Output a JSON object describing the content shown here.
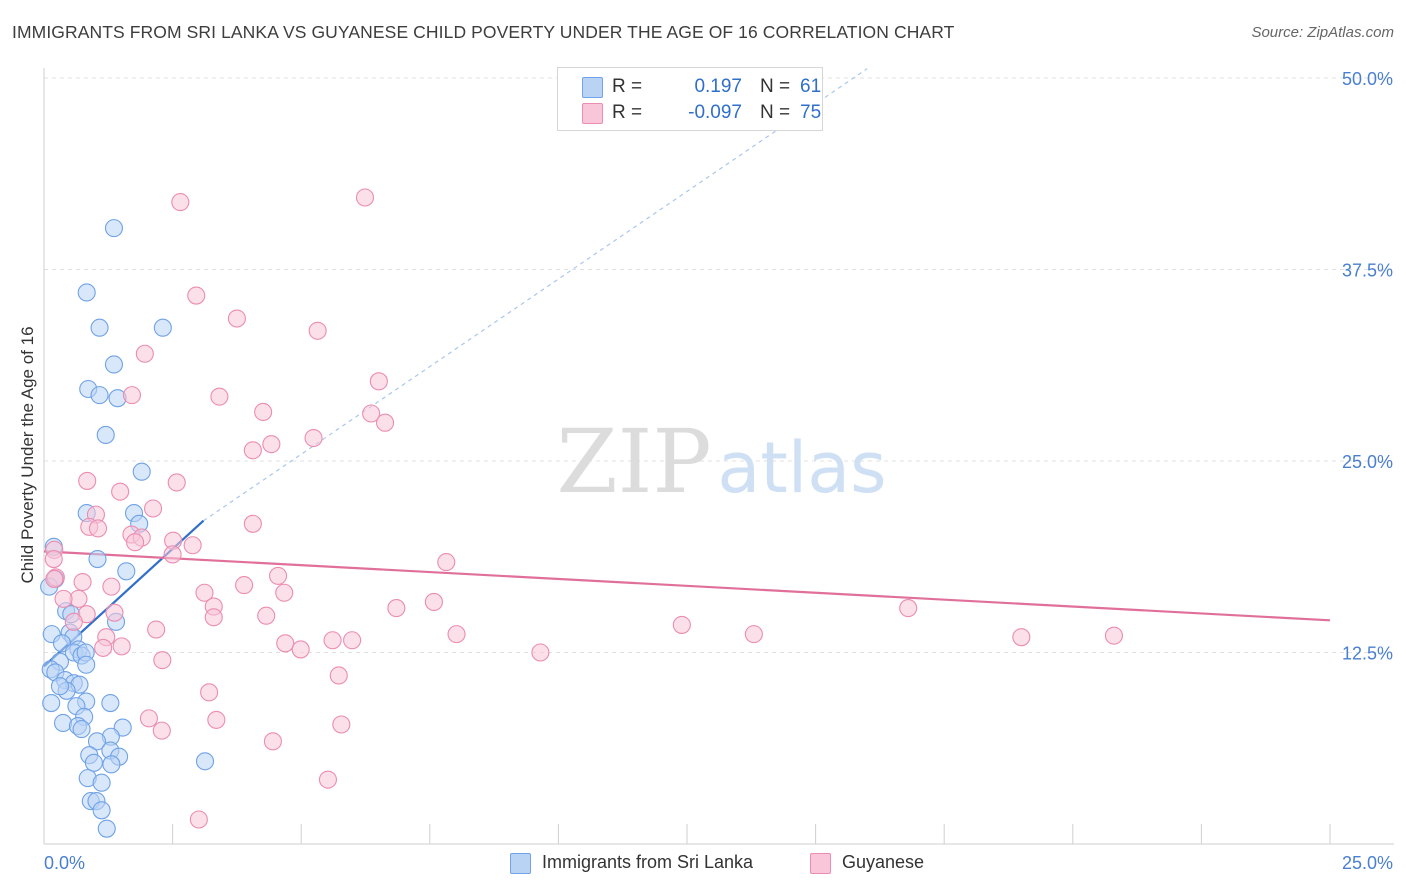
{
  "chart_data": {
    "type": "scatter",
    "title": "IMMIGRANTS FROM SRI LANKA VS GUYANESE CHILD POVERTY UNDER THE AGE OF 16 CORRELATION CHART",
    "source": "Source: ZipAtlas.com",
    "xlabel": "",
    "ylabel": "Child Poverty Under the Age of 16",
    "xlim": [
      0,
      25
    ],
    "ylim": [
      0,
      50
    ],
    "x_tick_labels": [
      "0.0%",
      "25.0%"
    ],
    "y_tick_labels": [
      "12.5%",
      "25.0%",
      "37.5%",
      "50.0%"
    ],
    "y_ticks": [
      12.5,
      25.0,
      37.5,
      50.0
    ],
    "grid": true,
    "watermark": "ZIPatlas",
    "legend": {
      "r_label": "R =",
      "n_label": "N =",
      "entries": [
        {
          "r": "0.197",
          "n": "61"
        },
        {
          "r": "-0.097",
          "n": "75"
        }
      ]
    },
    "series": [
      {
        "name": "Immigrants from Sri Lanka",
        "color": "#6fa2e6",
        "fill": "#b9d3f5",
        "trend": {
          "x0": 0.0,
          "y0": 11.6,
          "x1": 3.1,
          "y1": 21.1,
          "dashed_to_x": 16.0,
          "dashed_to_y": 50.6
        },
        "points": [
          [
            1.36,
            40.2
          ],
          [
            0.83,
            36.0
          ],
          [
            1.08,
            33.7
          ],
          [
            2.31,
            33.7
          ],
          [
            1.36,
            31.3
          ],
          [
            0.86,
            29.7
          ],
          [
            1.08,
            29.3
          ],
          [
            1.43,
            29.1
          ],
          [
            1.2,
            26.7
          ],
          [
            1.9,
            24.3
          ],
          [
            0.83,
            21.6
          ],
          [
            1.75,
            21.6
          ],
          [
            1.85,
            20.9
          ],
          [
            0.19,
            19.4
          ],
          [
            1.04,
            18.6
          ],
          [
            1.6,
            17.8
          ],
          [
            0.22,
            17.3
          ],
          [
            0.1,
            16.8
          ],
          [
            0.43,
            15.2
          ],
          [
            0.53,
            15.0
          ],
          [
            1.4,
            14.5
          ],
          [
            0.5,
            13.8
          ],
          [
            0.15,
            13.7
          ],
          [
            0.57,
            13.5
          ],
          [
            0.35,
            13.1
          ],
          [
            0.67,
            12.7
          ],
          [
            0.58,
            12.5
          ],
          [
            0.73,
            12.3
          ],
          [
            0.81,
            12.5
          ],
          [
            0.31,
            11.9
          ],
          [
            0.82,
            11.7
          ],
          [
            0.13,
            11.4
          ],
          [
            0.22,
            11.2
          ],
          [
            0.41,
            10.7
          ],
          [
            0.58,
            10.5
          ],
          [
            0.69,
            10.4
          ],
          [
            0.44,
            10.0
          ],
          [
            0.31,
            10.3
          ],
          [
            0.14,
            9.2
          ],
          [
            0.82,
            9.3
          ],
          [
            1.29,
            9.2
          ],
          [
            0.63,
            9.0
          ],
          [
            0.78,
            8.3
          ],
          [
            0.37,
            7.9
          ],
          [
            0.66,
            7.7
          ],
          [
            1.53,
            7.6
          ],
          [
            0.73,
            7.5
          ],
          [
            1.3,
            7.0
          ],
          [
            1.03,
            6.7
          ],
          [
            1.29,
            6.1
          ],
          [
            0.88,
            5.8
          ],
          [
            1.46,
            5.7
          ],
          [
            0.97,
            5.3
          ],
          [
            1.31,
            5.2
          ],
          [
            3.13,
            5.4
          ],
          [
            0.85,
            4.3
          ],
          [
            1.12,
            4.0
          ],
          [
            0.91,
            2.8
          ],
          [
            1.02,
            2.8
          ],
          [
            1.12,
            2.2
          ],
          [
            1.22,
            1.0
          ]
        ]
      },
      {
        "name": "Guyanese",
        "color": "#ec8cb0",
        "fill": "#f8c6d8",
        "trend": {
          "x0": 0.0,
          "y0": 19.1,
          "x1": 25.0,
          "y1": 14.6
        },
        "points": [
          [
            6.24,
            42.2
          ],
          [
            2.65,
            41.9
          ],
          [
            2.96,
            35.8
          ],
          [
            3.75,
            34.3
          ],
          [
            5.32,
            33.5
          ],
          [
            1.96,
            32.0
          ],
          [
            6.51,
            30.2
          ],
          [
            1.71,
            29.3
          ],
          [
            3.41,
            29.2
          ],
          [
            4.26,
            28.2
          ],
          [
            6.36,
            28.1
          ],
          [
            6.63,
            27.5
          ],
          [
            5.24,
            26.5
          ],
          [
            4.42,
            26.1
          ],
          [
            4.06,
            25.7
          ],
          [
            0.84,
            23.7
          ],
          [
            2.58,
            23.6
          ],
          [
            1.48,
            23.0
          ],
          [
            2.12,
            21.9
          ],
          [
            1.01,
            21.5
          ],
          [
            4.06,
            20.9
          ],
          [
            0.88,
            20.7
          ],
          [
            1.05,
            20.6
          ],
          [
            1.7,
            20.2
          ],
          [
            1.9,
            20.0
          ],
          [
            2.51,
            19.8
          ],
          [
            2.89,
            19.5
          ],
          [
            1.77,
            19.7
          ],
          [
            0.2,
            19.2
          ],
          [
            0.19,
            18.6
          ],
          [
            2.5,
            18.9
          ],
          [
            7.82,
            18.4
          ],
          [
            4.55,
            17.5
          ],
          [
            0.75,
            17.1
          ],
          [
            1.31,
            16.8
          ],
          [
            3.89,
            16.9
          ],
          [
            0.23,
            17.4
          ],
          [
            4.67,
            16.4
          ],
          [
            3.12,
            16.4
          ],
          [
            0.67,
            16.0
          ],
          [
            0.38,
            16.0
          ],
          [
            3.3,
            15.5
          ],
          [
            6.85,
            15.4
          ],
          [
            7.58,
            15.8
          ],
          [
            16.8,
            15.4
          ],
          [
            0.83,
            15.0
          ],
          [
            1.37,
            15.1
          ],
          [
            3.3,
            14.8
          ],
          [
            4.32,
            14.9
          ],
          [
            0.58,
            14.5
          ],
          [
            2.18,
            14.0
          ],
          [
            12.4,
            14.3
          ],
          [
            13.8,
            13.7
          ],
          [
            19.0,
            13.5
          ],
          [
            20.8,
            13.6
          ],
          [
            8.02,
            13.7
          ],
          [
            1.21,
            13.5
          ],
          [
            5.61,
            13.3
          ],
          [
            5.99,
            13.3
          ],
          [
            4.69,
            13.1
          ],
          [
            1.51,
            12.9
          ],
          [
            1.15,
            12.8
          ],
          [
            4.99,
            12.7
          ],
          [
            9.65,
            12.5
          ],
          [
            2.3,
            12.0
          ],
          [
            5.73,
            11.0
          ],
          [
            3.21,
            9.9
          ],
          [
            2.04,
            8.2
          ],
          [
            3.35,
            8.1
          ],
          [
            5.78,
            7.8
          ],
          [
            2.29,
            7.4
          ],
          [
            4.45,
            6.7
          ],
          [
            5.52,
            4.2
          ],
          [
            3.01,
            1.6
          ],
          [
            0.2,
            17.3
          ]
        ]
      }
    ]
  }
}
